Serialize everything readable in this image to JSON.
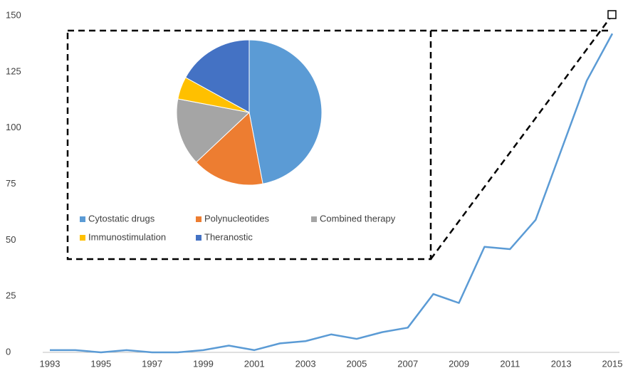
{
  "chart_data": [
    {
      "type": "line",
      "x": [
        1993,
        1994,
        1995,
        1996,
        1997,
        1998,
        1999,
        2000,
        2001,
        2002,
        2003,
        2004,
        2005,
        2006,
        2007,
        2008,
        2009,
        2010,
        2011,
        2012,
        2013,
        2014,
        2015
      ],
      "series": [
        {
          "color": "#5b9bd5",
          "values": [
            1,
            1,
            0,
            1,
            0,
            0,
            1,
            3,
            1,
            4,
            5,
            8,
            6,
            9,
            11,
            26,
            22,
            47,
            46,
            59,
            90,
            121,
            142
          ]
        }
      ],
      "xlim": [
        1993,
        2015
      ],
      "xticks": [
        1993,
        1995,
        1997,
        1999,
        2001,
        2003,
        2005,
        2007,
        2009,
        2011,
        2013,
        2015
      ],
      "ylim": [
        0,
        150
      ],
      "yticks": [
        0,
        25,
        50,
        75,
        100,
        125,
        150
      ],
      "grid": false
    },
    {
      "type": "pie",
      "categories": [
        "Cytostatic drugs",
        "Polynucleotides",
        "Combined therapy",
        "Immunostimulation",
        "Theranostic"
      ],
      "values": [
        47,
        16,
        15,
        5,
        17
      ],
      "colors": [
        "#5b9bd5",
        "#ed7d31",
        "#a5a5a5",
        "#ffc000",
        "#4472c4"
      ]
    }
  ]
}
